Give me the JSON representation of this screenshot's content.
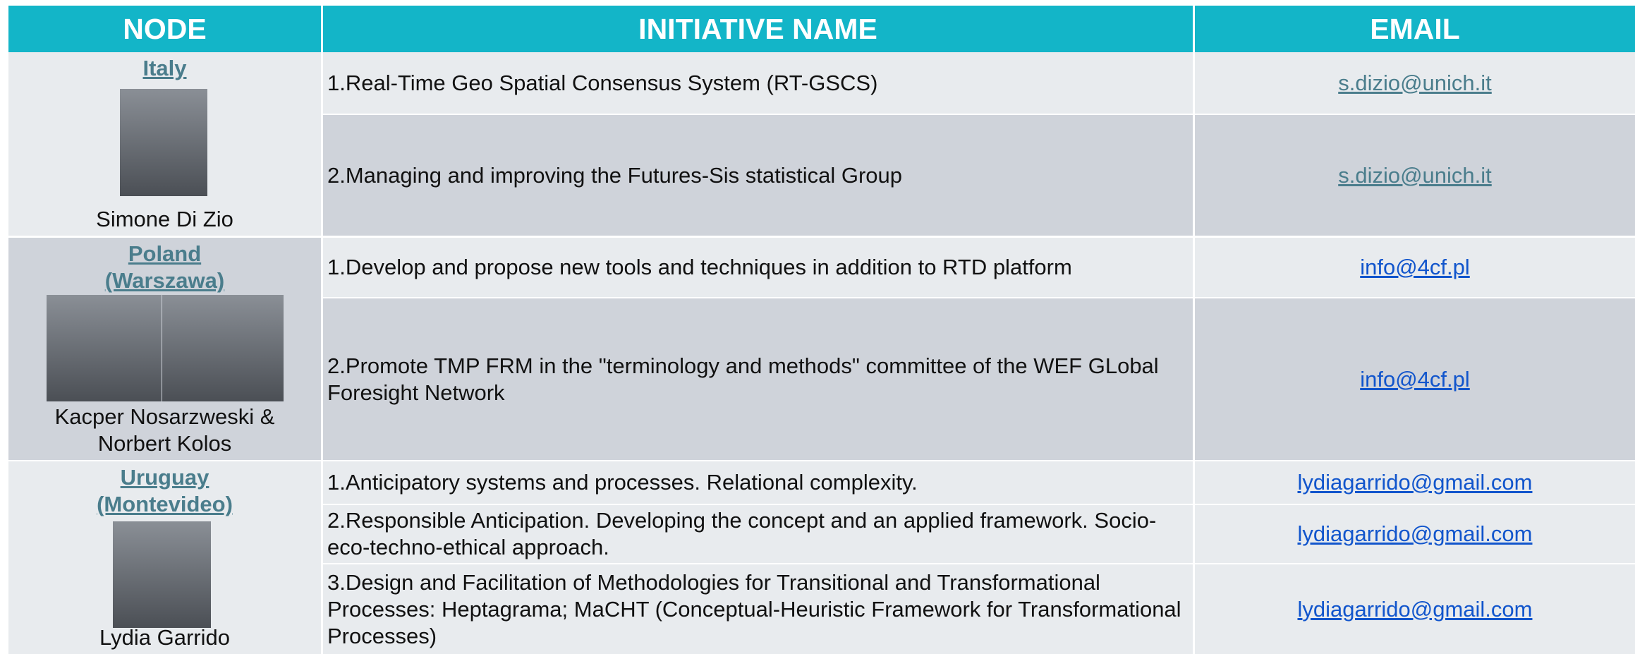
{
  "table": {
    "headers": [
      "NODE",
      "INITIATIVE NAME",
      "EMAIL"
    ],
    "groups": [
      {
        "node": "Italy",
        "person": "Simone Di Zio",
        "rows": [
          {
            "initiative": "1.Real-Time Geo Spatial Consensus System (RT-GSCS)",
            "email": "s.dizio@unich.it"
          },
          {
            "initiative": "2.Managing and improving the Futures-Sis statistical Group",
            "email": "s.dizio@unich.it"
          }
        ]
      },
      {
        "node": "Poland (Warszawa)",
        "person": "Kacper Nosarzweski & Norbert Kolos",
        "rows": [
          {
            "initiative": "1.Develop and propose new tools and techniques in addition to RTD platform",
            "email": "info@4cf.pl"
          },
          {
            "initiative": "2.Promote TMP FRM in the \"terminology and methods\" committee of the WEF GLobal Foresight Network",
            "email": "info@4cf.pl"
          }
        ]
      },
      {
        "node": "Uruguay (Montevideo)",
        "person": "Lydia Garrido",
        "rows": [
          {
            "initiative": "1.Anticipatory systems and processes. Relational complexity.",
            "email": "lydiagarrido@gmail.com"
          },
          {
            "initiative": "2.Responsible Anticipation. Developing the concept and an applied framework. Socio-eco-techno-ethical approach.",
            "email": "lydiagarrido@gmail.com"
          },
          {
            "initiative": "3.Design and Facilitation of Methodologies for Transitional and Transformational Processes: Heptagrama; MaCHT (Conceptual-Heuristic Framework for Transformational Processes)",
            "email": "lydiagarrido@gmail.com"
          }
        ]
      }
    ]
  }
}
